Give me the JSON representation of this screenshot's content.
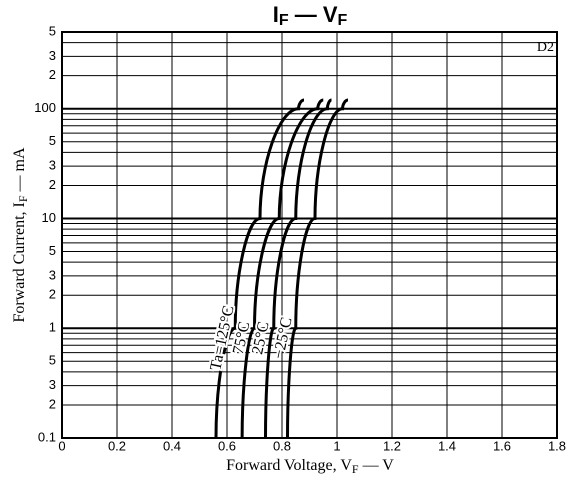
{
  "chart_data": {
    "type": "line",
    "title": [
      "I",
      "F",
      " — ",
      "V",
      "F"
    ],
    "x_label": [
      "Forward Voltage,  V",
      "F",
      "  —  V"
    ],
    "y_label": [
      "Forward Current, I",
      "F",
      "  —  mA"
    ],
    "annotation": "D2",
    "log_y": true,
    "grid": true,
    "xlim": [
      0,
      1.8
    ],
    "xticks": [
      0,
      0.2,
      0.4,
      0.6,
      0.8,
      1.0,
      1.2,
      1.4,
      1.6,
      1.8
    ],
    "ylim": [
      0.1,
      500
    ],
    "yticks": [
      0.1,
      {
        "value": 0.2,
        "label": "2"
      },
      {
        "value": 0.3,
        "label": "3"
      },
      {
        "value": 0.5,
        "label": "5"
      },
      1,
      2,
      3,
      5,
      10,
      {
        "value": 20,
        "label": "2"
      },
      {
        "value": 30,
        "label": "3"
      },
      {
        "value": 50,
        "label": "5"
      },
      100,
      {
        "value": 200,
        "label": "2"
      },
      {
        "value": 300,
        "label": "3"
      },
      {
        "value": 500,
        "label": "5"
      }
    ],
    "y_minor_gridlines": [
      0.4,
      0.6,
      0.7,
      0.8,
      0.9,
      4,
      6,
      7,
      8,
      9,
      40,
      60,
      70,
      80,
      90,
      400
    ],
    "series": [
      {
        "name": "Ta=125°C",
        "color": "#000000",
        "x": [
          0.56,
          0.63,
          0.72,
          0.86,
          0.88
        ],
        "values": [
          0.1,
          1,
          10,
          100,
          120
        ]
      },
      {
        "name": "75°C",
        "color": "#000000",
        "x": [
          0.655,
          0.7,
          0.79,
          0.93,
          0.95
        ],
        "values": [
          0.1,
          1,
          10,
          100,
          120
        ]
      },
      {
        "name": "25°C",
        "color": "#000000",
        "x": [
          0.74,
          0.77,
          0.85,
          0.965,
          0.98
        ],
        "values": [
          0.1,
          1,
          10,
          100,
          120
        ]
      },
      {
        "name": "−25°C",
        "color": "#000000",
        "x": [
          0.82,
          0.85,
          0.92,
          1.02,
          1.04
        ],
        "values": [
          0.1,
          1,
          10,
          100,
          120
        ]
      }
    ]
  }
}
